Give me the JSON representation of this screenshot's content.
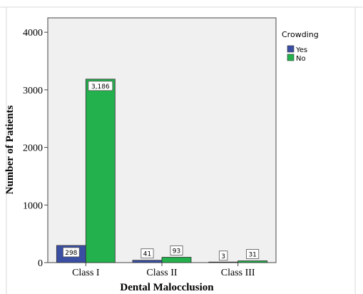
{
  "chart_data": {
    "type": "bar",
    "title": "",
    "xlabel": "Dental Malocclusion",
    "ylabel": "Number of Patients",
    "categories": [
      "Class I",
      "Class II",
      "Class III"
    ],
    "ylim": [
      0,
      4250
    ],
    "yticks": [
      0,
      1000,
      2000,
      3000,
      4000
    ],
    "grid": false,
    "legend": {
      "title": "Crowding",
      "placement": "right"
    },
    "series": [
      {
        "name": "Yes",
        "color": "#3a4fa3",
        "values": [
          298,
          41,
          3
        ],
        "labels": [
          "298",
          "41",
          "3"
        ]
      },
      {
        "name": "No",
        "color": "#22b14c",
        "values": [
          3186,
          93,
          31
        ],
        "labels": [
          "3,186",
          "93",
          "31"
        ]
      }
    ],
    "plot_background": "#f0f0f0"
  }
}
